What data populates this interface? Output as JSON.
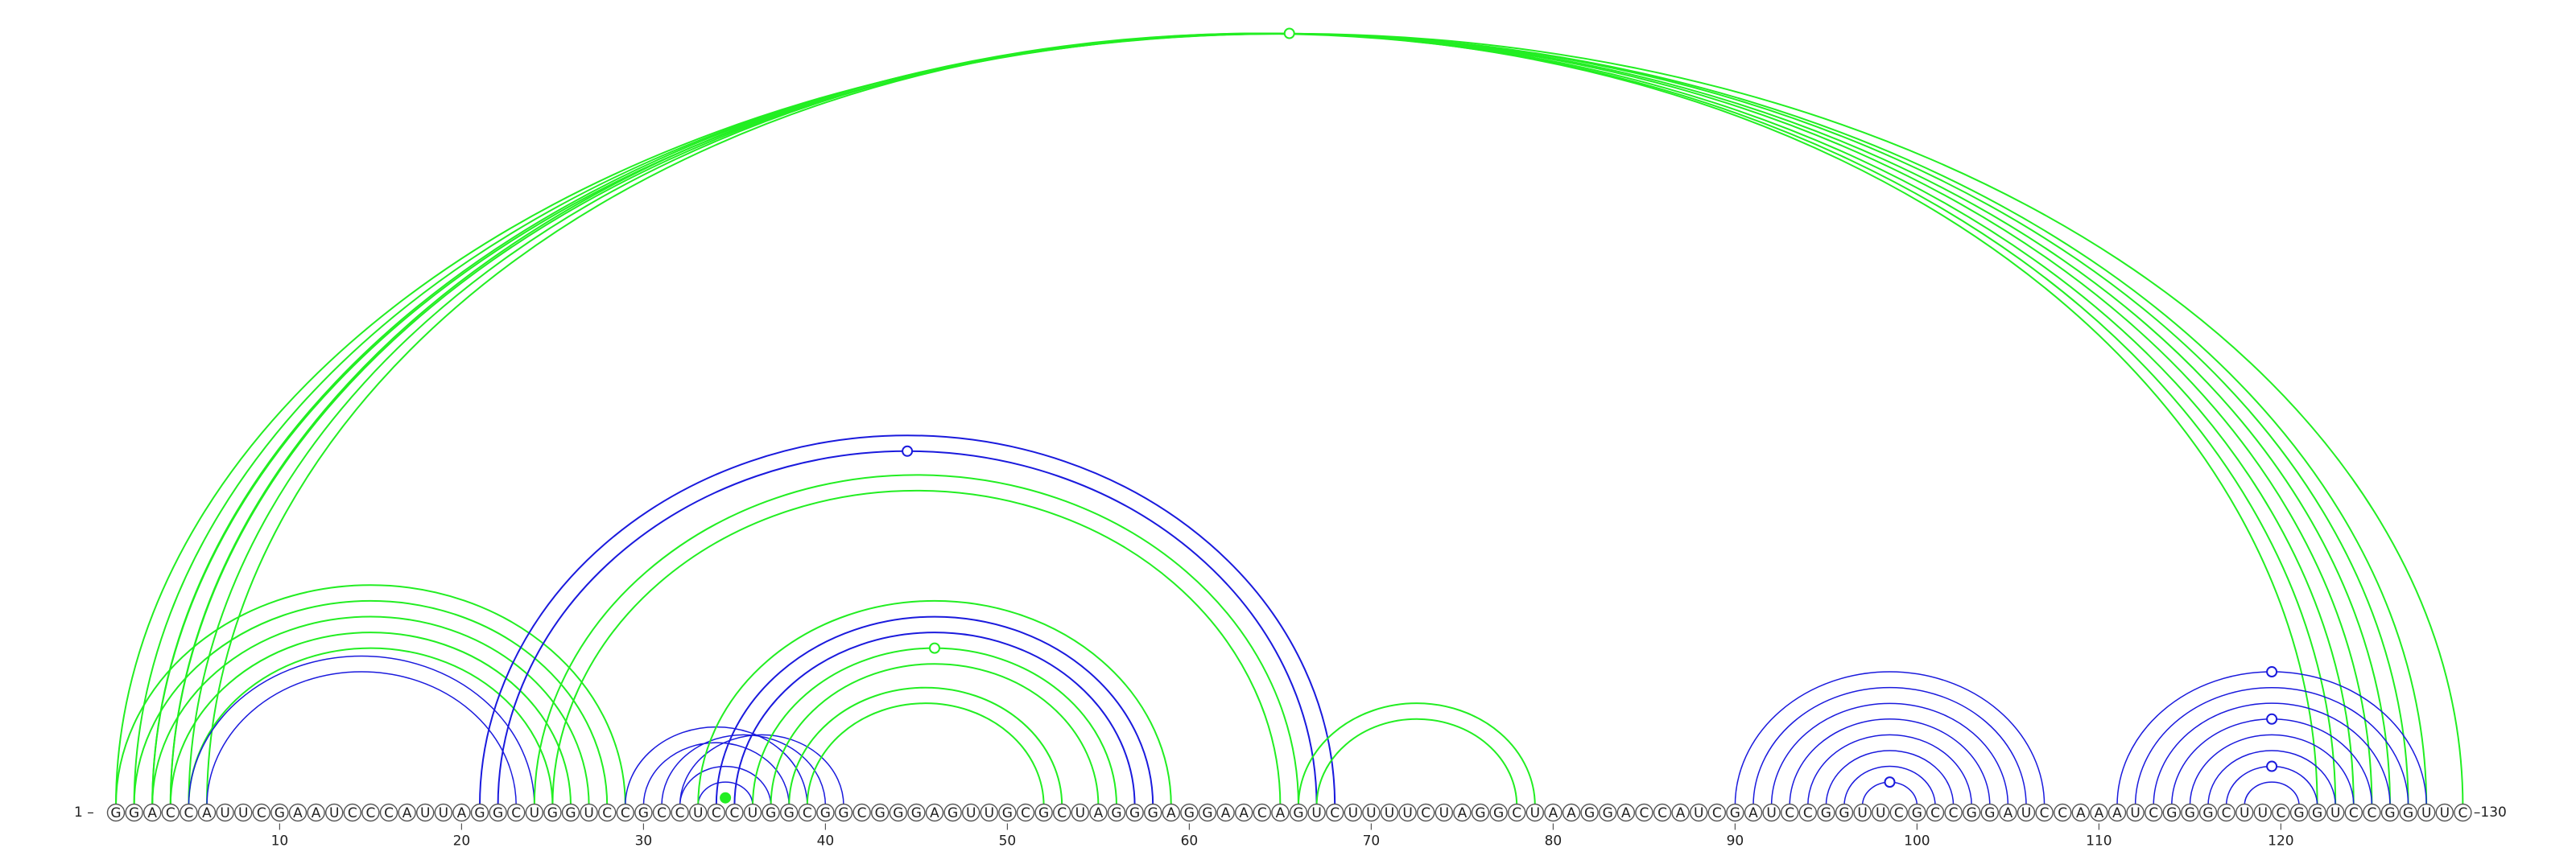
{
  "sequence": "GGACCAUUCGAAUCCCAUUAGGCUGGUCCGCCUCCUGGCGGCGGGAGUUGCGCUAGGGAGGAACAGUCUUUUCUAGGCUAAGGACCAUCGAUCCGGUUCGCCGGAUCCAAAUCGGGCUUCGGUCCGGUUC",
  "start_label": "1",
  "end_label": "130",
  "ticks": [
    10,
    20,
    30,
    40,
    50,
    60,
    70,
    80,
    90,
    100,
    110,
    120
  ],
  "colors": {
    "green": "#22ee22",
    "blue": "#1a1add"
  },
  "arcs": [
    {
      "i": 1,
      "j": 130,
      "color": "green",
      "weight": 2
    },
    {
      "i": 2,
      "j": 128,
      "color": "green",
      "weight": 2
    },
    {
      "i": 3,
      "j": 127,
      "color": "green",
      "weight": 2
    },
    {
      "i": 3,
      "j": 126,
      "color": "green",
      "weight": 2
    },
    {
      "i": 4,
      "j": 125,
      "color": "green",
      "weight": 2
    },
    {
      "i": 4,
      "j": 124,
      "color": "green",
      "weight": 2
    },
    {
      "i": 5,
      "j": 123,
      "color": "green",
      "weight": 2
    },
    {
      "i": 6,
      "j": 122,
      "color": "green",
      "weight": 2
    },
    {
      "i": 1,
      "j": 29,
      "color": "green",
      "weight": 2
    },
    {
      "i": 2,
      "j": 28,
      "color": "green",
      "weight": 2
    },
    {
      "i": 3,
      "j": 27,
      "color": "green",
      "weight": 2
    },
    {
      "i": 4,
      "j": 26,
      "color": "green",
      "weight": 2
    },
    {
      "i": 5,
      "j": 25,
      "color": "green",
      "weight": 2
    },
    {
      "i": 5,
      "j": 24,
      "color": "blue",
      "weight": 1.5
    },
    {
      "i": 6,
      "j": 23,
      "color": "blue",
      "weight": 1.5
    },
    {
      "i": 21,
      "j": 68,
      "color": "blue",
      "weight": 2
    },
    {
      "i": 22,
      "j": 67,
      "color": "blue",
      "weight": 2
    },
    {
      "i": 24,
      "j": 66,
      "color": "green",
      "weight": 2
    },
    {
      "i": 25,
      "j": 65,
      "color": "green",
      "weight": 2
    },
    {
      "i": 29,
      "j": 39,
      "color": "blue",
      "weight": 1.5
    },
    {
      "i": 30,
      "j": 38,
      "color": "blue",
      "weight": 1.5
    },
    {
      "i": 31,
      "j": 40,
      "color": "blue",
      "weight": 1.5
    },
    {
      "i": 32,
      "j": 37,
      "color": "blue",
      "weight": 1.5
    },
    {
      "i": 33,
      "j": 36,
      "color": "blue",
      "weight": 1.5
    },
    {
      "i": 32,
      "j": 41,
      "color": "blue",
      "weight": 1.5
    },
    {
      "i": 33,
      "j": 59,
      "color": "green",
      "weight": 2
    },
    {
      "i": 34,
      "j": 58,
      "color": "blue",
      "weight": 2
    },
    {
      "i": 35,
      "j": 57,
      "color": "blue",
      "weight": 2
    },
    {
      "i": 36,
      "j": 56,
      "color": "green",
      "weight": 2
    },
    {
      "i": 37,
      "j": 55,
      "color": "green",
      "weight": 2
    },
    {
      "i": 38,
      "j": 53,
      "color": "green",
      "weight": 2
    },
    {
      "i": 39,
      "j": 52,
      "color": "green",
      "weight": 2
    },
    {
      "i": 66,
      "j": 79,
      "color": "green",
      "weight": 2
    },
    {
      "i": 67,
      "j": 78,
      "color": "green",
      "weight": 2
    },
    {
      "i": 90,
      "j": 107,
      "color": "blue",
      "weight": 1.5
    },
    {
      "i": 91,
      "j": 106,
      "color": "blue",
      "weight": 1.5
    },
    {
      "i": 92,
      "j": 105,
      "color": "blue",
      "weight": 1.5
    },
    {
      "i": 93,
      "j": 104,
      "color": "blue",
      "weight": 1.5
    },
    {
      "i": 94,
      "j": 103,
      "color": "blue",
      "weight": 1.5
    },
    {
      "i": 95,
      "j": 102,
      "color": "blue",
      "weight": 1.5
    },
    {
      "i": 96,
      "j": 101,
      "color": "blue",
      "weight": 1.5
    },
    {
      "i": 97,
      "j": 100,
      "color": "blue",
      "weight": 1.5
    },
    {
      "i": 111,
      "j": 128,
      "color": "blue",
      "weight": 1.5
    },
    {
      "i": 112,
      "j": 127,
      "color": "blue",
      "weight": 1.5
    },
    {
      "i": 113,
      "j": 126,
      "color": "blue",
      "weight": 1.5
    },
    {
      "i": 114,
      "j": 125,
      "color": "blue",
      "weight": 1.5
    },
    {
      "i": 115,
      "j": 124,
      "color": "blue",
      "weight": 1.5
    },
    {
      "i": 116,
      "j": 123,
      "color": "blue",
      "weight": 1.5
    },
    {
      "i": 117,
      "j": 122,
      "color": "blue",
      "weight": 1.5
    },
    {
      "i": 118,
      "j": 121,
      "color": "blue",
      "weight": 1.5
    }
  ],
  "markers": [
    {
      "i": 1,
      "j": 130,
      "color": "green",
      "filled": false
    },
    {
      "i": 22,
      "j": 67,
      "color": "blue",
      "filled": false
    },
    {
      "i": 36,
      "j": 56,
      "color": "green",
      "filled": false
    },
    {
      "i": 34,
      "j": 35,
      "color": "green",
      "filled": true
    },
    {
      "i": 97,
      "j": 100,
      "color": "blue",
      "filled": false
    },
    {
      "i": 111,
      "j": 128,
      "color": "blue",
      "filled": false
    },
    {
      "i": 114,
      "j": 125,
      "color": "blue",
      "filled": false
    },
    {
      "i": 117,
      "j": 122,
      "color": "blue",
      "filled": false
    }
  ]
}
